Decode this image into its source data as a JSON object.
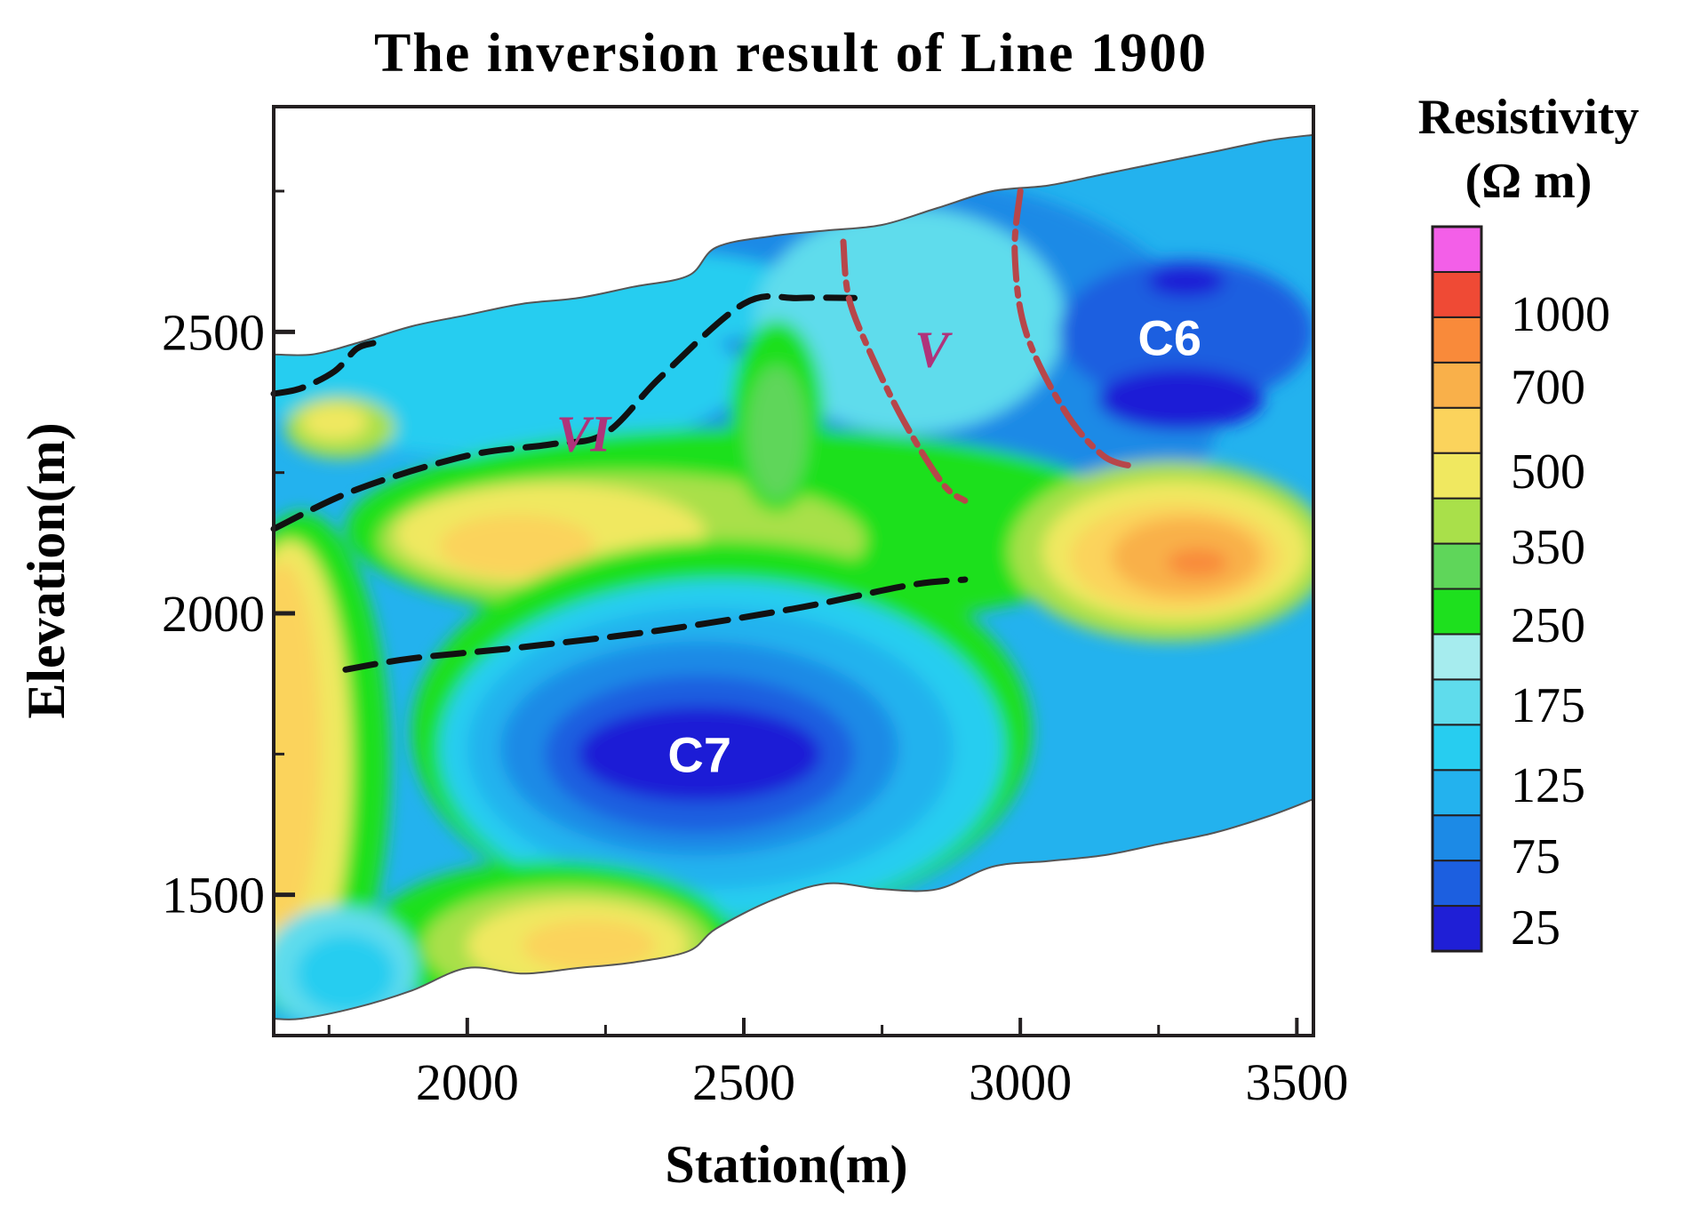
{
  "chart_data": {
    "type": "heatmap",
    "title": "The inversion result of Line 1900",
    "xlabel": "Station(m)",
    "ylabel": "Elevation(m)",
    "xlim": [
      1650,
      3530
    ],
    "ylim": [
      1250,
      2900
    ],
    "x_ticks": [
      2000,
      2500,
      3000,
      3500
    ],
    "x_tick_labels": [
      "2000",
      "2500",
      "3000",
      "3500"
    ],
    "x_minor_ticks": [
      1750,
      2250,
      2750,
      3250
    ],
    "y_ticks": [
      1500,
      2000,
      2500
    ],
    "y_tick_labels": [
      "1500",
      "2000",
      "2500"
    ],
    "y_minor_ticks": [
      1750,
      2250,
      2750
    ],
    "colorbar": {
      "title": "Resistivity",
      "unit": "(Ω m)",
      "colors": [
        "#1f1fd6",
        "#1c5fe0",
        "#1c8ae6",
        "#23b2ee",
        "#27cdf0",
        "#5fdcec",
        "#a6ecee",
        "#1ee01e",
        "#5fd65a",
        "#a9e04a",
        "#f0e860",
        "#fbd35c",
        "#f9b04a",
        "#f98a3a",
        "#ef4a35",
        "#f35fe8"
      ],
      "labels": [
        "25",
        "75",
        "125",
        "175",
        "250",
        "350",
        "500",
        "700",
        "1000"
      ]
    },
    "anomalies": [
      {
        "label": "C7",
        "x": 2420,
        "y": 1750
      },
      {
        "label": "C6",
        "x": 3270,
        "y": 2490
      }
    ],
    "faults": [
      {
        "label": "VI",
        "x": 2210,
        "y": 2320
      },
      {
        "label": "V",
        "x": 2840,
        "y": 2470
      }
    ],
    "model_outline": {
      "top": [
        [
          1650,
          2460
        ],
        [
          1720,
          2460
        ],
        [
          1800,
          2480
        ],
        [
          1900,
          2510
        ],
        [
          2000,
          2530
        ],
        [
          2100,
          2550
        ],
        [
          2200,
          2560
        ],
        [
          2300,
          2580
        ],
        [
          2400,
          2600
        ],
        [
          2450,
          2650
        ],
        [
          2550,
          2670
        ],
        [
          2650,
          2680
        ],
        [
          2750,
          2690
        ],
        [
          2850,
          2720
        ],
        [
          2950,
          2750
        ],
        [
          3050,
          2760
        ],
        [
          3150,
          2780
        ],
        [
          3250,
          2800
        ],
        [
          3350,
          2820
        ],
        [
          3450,
          2840
        ],
        [
          3530,
          2850
        ]
      ],
      "bottom": [
        [
          3530,
          1670
        ],
        [
          3450,
          1640
        ],
        [
          3350,
          1610
        ],
        [
          3250,
          1590
        ],
        [
          3150,
          1570
        ],
        [
          3050,
          1560
        ],
        [
          2950,
          1550
        ],
        [
          2850,
          1510
        ],
        [
          2750,
          1510
        ],
        [
          2650,
          1520
        ],
        [
          2550,
          1490
        ],
        [
          2450,
          1440
        ],
        [
          2400,
          1400
        ],
        [
          2300,
          1380
        ],
        [
          2200,
          1370
        ],
        [
          2100,
          1360
        ],
        [
          2000,
          1370
        ],
        [
          1900,
          1330
        ],
        [
          1800,
          1300
        ],
        [
          1700,
          1280
        ],
        [
          1650,
          1280
        ]
      ]
    },
    "bodies": [
      {
        "color": "#1c8ae6",
        "x": 2750,
        "y": 2400,
        "rx": 620,
        "ry": 380
      },
      {
        "color": "#27cdf0",
        "x": 2050,
        "y": 2420,
        "rx": 450,
        "ry": 140
      },
      {
        "color": "#27cdf0",
        "x": 2300,
        "y": 2560,
        "rx": 340,
        "ry": 85
      },
      {
        "color": "#5fdcec",
        "x": 2800,
        "y": 2520,
        "rx": 280,
        "ry": 200
      },
      {
        "color": "#1c5fe0",
        "x": 3300,
        "y": 2500,
        "rx": 230,
        "ry": 130
      },
      {
        "color": "#1f1fd6",
        "x": 3290,
        "y": 2380,
        "rx": 150,
        "ry": 55
      },
      {
        "color": "#1f1fd6",
        "x": 3300,
        "y": 2590,
        "rx": 70,
        "ry": 28
      },
      {
        "color": "#1ee01e",
        "x": 2500,
        "y": 2150,
        "rx": 720,
        "ry": 180
      },
      {
        "color": "#a9e04a",
        "x": 2280,
        "y": 2130,
        "rx": 440,
        "ry": 120
      },
      {
        "color": "#f0e860",
        "x": 2150,
        "y": 2140,
        "rx": 280,
        "ry": 90
      },
      {
        "color": "#fbd35c",
        "x": 2090,
        "y": 2120,
        "rx": 140,
        "ry": 55
      },
      {
        "color": "#1ee01e",
        "x": 2560,
        "y": 2350,
        "rx": 85,
        "ry": 170
      },
      {
        "color": "#5fd65a",
        "x": 2560,
        "y": 2320,
        "rx": 55,
        "ry": 120
      },
      {
        "color": "#a9e04a",
        "x": 3270,
        "y": 2110,
        "rx": 290,
        "ry": 160
      },
      {
        "color": "#f0e860",
        "x": 3280,
        "y": 2110,
        "rx": 240,
        "ry": 125
      },
      {
        "color": "#fbd35c",
        "x": 3280,
        "y": 2100,
        "rx": 190,
        "ry": 95
      },
      {
        "color": "#f9b04a",
        "x": 3300,
        "y": 2100,
        "rx": 135,
        "ry": 70
      },
      {
        "color": "#f98a3a",
        "x": 3320,
        "y": 2090,
        "rx": 55,
        "ry": 25
      },
      {
        "color": "#1ee01e",
        "x": 2460,
        "y": 1790,
        "rx": 560,
        "ry": 340
      },
      {
        "color": "#27cdf0",
        "x": 2460,
        "y": 1760,
        "rx": 510,
        "ry": 300
      },
      {
        "color": "#23b2ee",
        "x": 2440,
        "y": 1760,
        "rx": 440,
        "ry": 250
      },
      {
        "color": "#1c8ae6",
        "x": 2420,
        "y": 1760,
        "rx": 360,
        "ry": 190
      },
      {
        "color": "#1c5fe0",
        "x": 2420,
        "y": 1750,
        "rx": 280,
        "ry": 140
      },
      {
        "color": "#1f1fd6",
        "x": 2420,
        "y": 1750,
        "rx": 220,
        "ry": 85
      },
      {
        "color": "#1ee01e",
        "x": 1700,
        "y": 1730,
        "rx": 160,
        "ry": 450
      },
      {
        "color": "#f0e860",
        "x": 1680,
        "y": 1730,
        "rx": 110,
        "ry": 400
      },
      {
        "color": "#fbd35c",
        "x": 1665,
        "y": 1760,
        "rx": 70,
        "ry": 330
      },
      {
        "color": "#1ee01e",
        "x": 2150,
        "y": 1420,
        "rx": 330,
        "ry": 140
      },
      {
        "color": "#a9e04a",
        "x": 2180,
        "y": 1410,
        "rx": 260,
        "ry": 105
      },
      {
        "color": "#f0e860",
        "x": 2200,
        "y": 1410,
        "rx": 200,
        "ry": 80
      },
      {
        "color": "#fbd35c",
        "x": 2220,
        "y": 1410,
        "rx": 120,
        "ry": 45
      },
      {
        "color": "#5fdcec",
        "x": 1770,
        "y": 1370,
        "rx": 140,
        "ry": 110
      },
      {
        "color": "#27cdf0",
        "x": 1780,
        "y": 1360,
        "rx": 90,
        "ry": 70
      },
      {
        "color": "#a9e04a",
        "x": 1770,
        "y": 2330,
        "rx": 100,
        "ry": 55
      },
      {
        "color": "#f0e860",
        "x": 1760,
        "y": 2340,
        "rx": 60,
        "ry": 32
      }
    ],
    "boundaries": [
      {
        "style": "black",
        "points": [
          [
            1650,
            2390
          ],
          [
            1700,
            2400
          ],
          [
            1760,
            2430
          ],
          [
            1800,
            2470
          ],
          [
            1830,
            2480
          ]
        ]
      },
      {
        "style": "black",
        "points": [
          [
            1650,
            2150
          ],
          [
            1800,
            2220
          ],
          [
            2000,
            2280
          ],
          [
            2150,
            2300
          ],
          [
            2250,
            2320
          ],
          [
            2350,
            2420
          ],
          [
            2500,
            2550
          ],
          [
            2600,
            2560
          ],
          [
            2700,
            2560
          ]
        ]
      },
      {
        "style": "black",
        "points": [
          [
            1780,
            1900
          ],
          [
            1900,
            1920
          ],
          [
            2100,
            1940
          ],
          [
            2350,
            1970
          ],
          [
            2600,
            2010
          ],
          [
            2800,
            2050
          ],
          [
            2900,
            2060
          ]
        ]
      },
      {
        "style": "red",
        "points": [
          [
            2680,
            2660
          ],
          [
            2690,
            2560
          ],
          [
            2730,
            2460
          ],
          [
            2790,
            2340
          ],
          [
            2860,
            2230
          ],
          [
            2900,
            2200
          ]
        ]
      },
      {
        "style": "red",
        "points": [
          [
            3000,
            2750
          ],
          [
            2990,
            2640
          ],
          [
            3010,
            2500
          ],
          [
            3080,
            2360
          ],
          [
            3150,
            2280
          ],
          [
            3210,
            2260
          ]
        ]
      }
    ]
  }
}
